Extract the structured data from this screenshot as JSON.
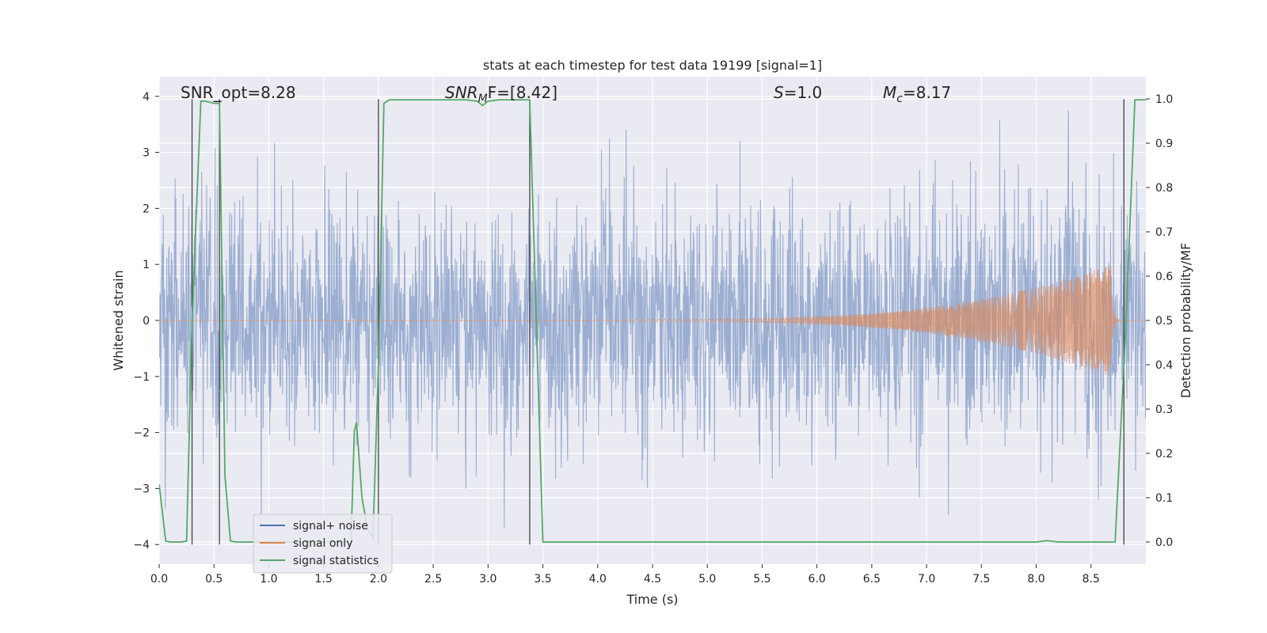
{
  "chart_data": {
    "type": "line",
    "title": "stats at each timestep for test data 19199 [signal=1]",
    "xlabel": "Time (s)",
    "ylabel": "Whitened strain",
    "y2label": "Detection probability/MF",
    "xlim": [
      0,
      9
    ],
    "ylim": [
      -4.35,
      4.35
    ],
    "y2lim": [
      -0.05,
      1.05
    ],
    "xticks": [
      0.0,
      0.5,
      1.0,
      1.5,
      2.0,
      2.5,
      3.0,
      3.5,
      4.0,
      4.5,
      5.0,
      5.5,
      6.0,
      6.5,
      7.0,
      7.5,
      8.0,
      8.5
    ],
    "xtick_labels": [
      "0.0",
      "0.5",
      "1.0",
      "1.5",
      "2.0",
      "2.5",
      "3.0",
      "3.5",
      "4.0",
      "4.5",
      "5.0",
      "5.5",
      "6.0",
      "6.5",
      "7.0",
      "7.5",
      "8.0",
      "8.5"
    ],
    "yticks": [
      -4,
      -3,
      -2,
      -1,
      0,
      1,
      2,
      3,
      4
    ],
    "ytick_labels": [
      "−4",
      "−3",
      "−2",
      "−1",
      "0",
      "1",
      "2",
      "3",
      "4"
    ],
    "y2ticks": [
      0.0,
      0.1,
      0.2,
      0.3,
      0.4,
      0.5,
      0.6,
      0.7,
      0.8,
      0.9,
      1.0
    ],
    "y2tick_labels": [
      "0.0",
      "0.1",
      "0.2",
      "0.3",
      "0.4",
      "0.5",
      "0.6",
      "0.7",
      "0.8",
      "0.9",
      "1.0"
    ],
    "grid": true,
    "legend_position": "bottom-left",
    "annotations": {
      "snr_opt": "SNR_opt=8.28",
      "snr_mf_base": "SNR",
      "snr_mf_sub": "M",
      "snr_mf_rest": "F=[8.42]",
      "s_label_italic": "S",
      "s_label_rest": "=1.0",
      "mc_base": "M",
      "mc_sub": "c",
      "mc_rest": "=8.17"
    },
    "series": [
      {
        "name": "signal+ noise",
        "color": "#4c72b0",
        "opacity": 0.5,
        "noise_std": 1.05,
        "peak_abs": 3.9
      },
      {
        "name": "signal only",
        "color": "#dd8452",
        "opacity": 0.6,
        "chirp": {
          "start_t": 4.3,
          "merger_t": 8.68,
          "end_t": 8.9,
          "peak_amp": 1.0,
          "min_amp": 0.02,
          "f_start": 18,
          "f_end": 60
        }
      },
      {
        "name": "signal statistics",
        "color": "#55a868",
        "axis": "right",
        "x": [
          0.0,
          0.06,
          0.1,
          0.15,
          0.2,
          0.25,
          0.3,
          0.38,
          0.42,
          0.5,
          0.55,
          0.6,
          0.65,
          0.7,
          1.75,
          1.78,
          1.8,
          1.85,
          1.9,
          1.95,
          2.0,
          2.05,
          2.1,
          2.4,
          2.8,
          2.9,
          2.95,
          3.0,
          3.1,
          3.2,
          3.3,
          3.38,
          3.5,
          3.6,
          4.0,
          5.0,
          6.0,
          7.0,
          8.0,
          8.1,
          8.2,
          8.6,
          8.72,
          8.82,
          8.9,
          9.0
        ],
        "values": [
          0.13,
          0.002,
          0.0,
          0.0,
          0.0,
          0.002,
          0.5,
          0.995,
          0.995,
          0.99,
          0.99,
          0.15,
          0.002,
          0.0,
          0.0,
          0.25,
          0.27,
          0.1,
          0.03,
          0.01,
          0.4,
          0.99,
          0.998,
          0.998,
          0.998,
          0.995,
          0.985,
          0.995,
          0.998,
          0.998,
          0.998,
          0.998,
          0.0,
          0.0,
          0.0,
          0.0,
          0.0,
          0.0,
          0.0,
          0.003,
          0.0,
          0.0,
          0.0,
          0.5,
          0.998,
          0.998
        ]
      }
    ],
    "vertical_lines": [
      0.3,
      0.55,
      2.0,
      3.38,
      8.8
    ]
  }
}
